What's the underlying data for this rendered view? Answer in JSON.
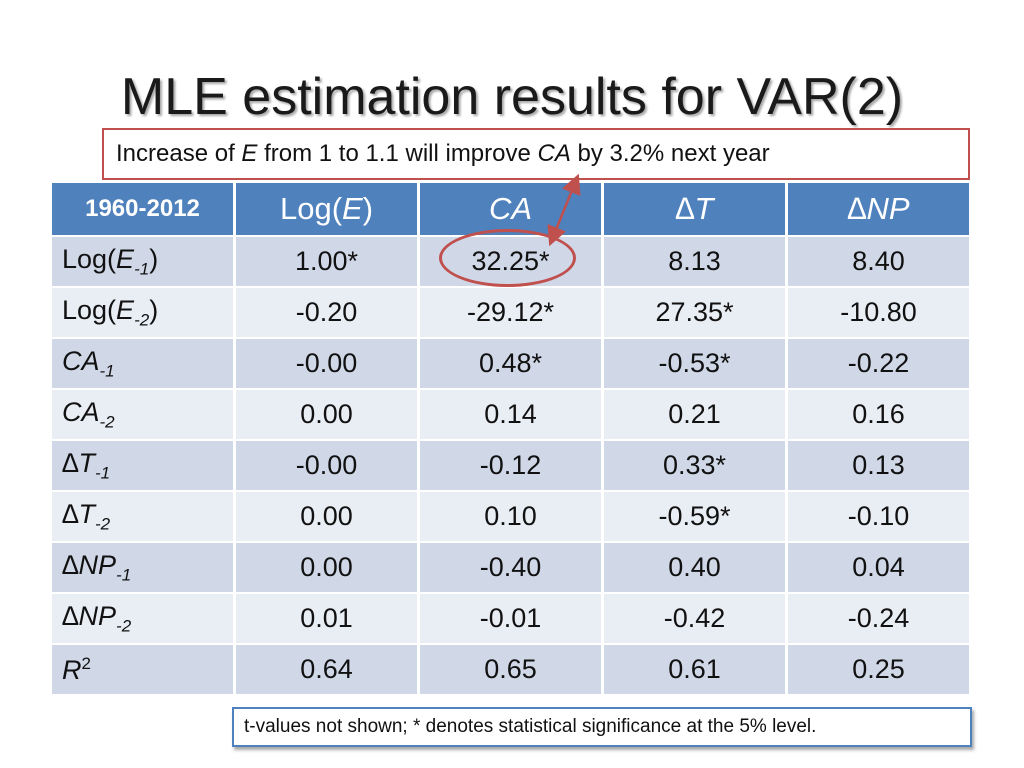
{
  "title": "MLE estimation results for VAR(2)",
  "callout": {
    "prefix": "Increase of ",
    "var1": "E",
    "middle": " from 1 to 1.1 will improve ",
    "var2": "CA",
    "suffix": " by 3.2% next year"
  },
  "table": {
    "corner": "1960-2012",
    "headers": [
      {
        "pre": "Log(",
        "it": "E",
        "post": ")"
      },
      {
        "pre": "",
        "it": "CA",
        "post": ""
      },
      {
        "pre": "",
        "it": "∆T",
        "post": ""
      },
      {
        "pre": "",
        "it": "∆NP",
        "post": ""
      }
    ],
    "rows": [
      {
        "label": {
          "pre": "Log(",
          "it": "E",
          "sub": "-1",
          "post": ")"
        },
        "values": [
          "1.00*",
          "32.25*",
          "8.13",
          "8.40"
        ]
      },
      {
        "label": {
          "pre": "Log(",
          "it": "E",
          "sub": "-2",
          "post": ")"
        },
        "values": [
          "-0.20",
          "-29.12*",
          "27.35*",
          "-10.80"
        ]
      },
      {
        "label": {
          "pre": "",
          "it": "CA",
          "sub": "-1",
          "post": ""
        },
        "values": [
          "-0.00",
          "0.48*",
          "-0.53*",
          "-0.22"
        ]
      },
      {
        "label": {
          "pre": "",
          "it": "CA",
          "sub": "-2",
          "post": ""
        },
        "values": [
          "0.00",
          "0.14",
          "0.21",
          "0.16"
        ]
      },
      {
        "label": {
          "pre": "",
          "it": "∆T",
          "sub": "-1",
          "post": ""
        },
        "values": [
          "-0.00",
          "-0.12",
          "0.33*",
          "0.13"
        ]
      },
      {
        "label": {
          "pre": "",
          "it": "∆T",
          "sub": "-2",
          "post": ""
        },
        "values": [
          "0.00",
          "0.10",
          "-0.59*",
          "-0.10"
        ]
      },
      {
        "label": {
          "pre": "",
          "it": "∆NP",
          "sub": "-1",
          "post": ""
        },
        "values": [
          "0.00",
          "-0.40",
          "0.40",
          "0.04"
        ]
      },
      {
        "label": {
          "pre": "",
          "it": "∆NP",
          "sub": "-2",
          "post": ""
        },
        "values": [
          "0.01",
          "-0.01",
          "-0.42",
          "-0.24"
        ]
      },
      {
        "label": {
          "pre": "",
          "it": "R",
          "sup": "2",
          "post": ""
        },
        "values": [
          "0.64",
          "0.65",
          "0.61",
          "0.25"
        ]
      }
    ]
  },
  "footnote": "t-values not shown; * denotes statistical significance at the 5% level.",
  "colors": {
    "header": "#4f81bd",
    "row_dark": "#d0d8e8",
    "row_light": "#e9edf4",
    "highlight": "#c0504d"
  }
}
